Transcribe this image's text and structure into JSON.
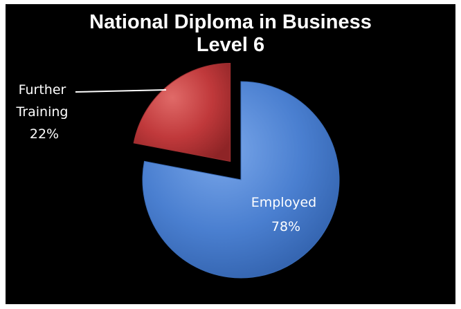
{
  "chart_data": {
    "type": "pie",
    "title_lines": [
      "National Diploma in Business",
      "Level 6"
    ],
    "slices": [
      {
        "name": "Employed",
        "value": 78,
        "value_label": "78%",
        "color": "#4a7fd0",
        "label_lines": [
          "Employed",
          "78%"
        ]
      },
      {
        "name": "Further Training",
        "value": 22,
        "value_label": "22%",
        "color": "#c0393b",
        "label_lines": [
          "Further",
          "Training",
          "22%"
        ]
      }
    ],
    "legend": "none",
    "background": "#000000"
  }
}
